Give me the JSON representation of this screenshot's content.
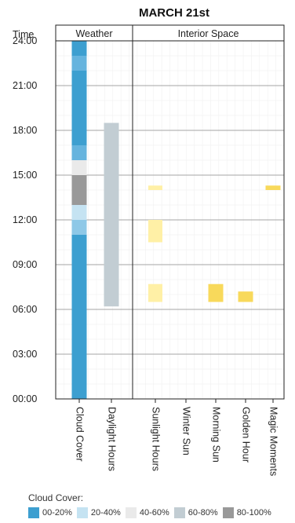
{
  "chart_data": {
    "type": "timeline",
    "title": "MARCH 21st",
    "y_axis_label": "Time",
    "y_ticks": [
      "24:00",
      "21:00",
      "18:00",
      "15:00",
      "12:00",
      "09:00",
      "06:00",
      "03:00",
      "00:00"
    ],
    "y_tick_hours": [
      24,
      21,
      18,
      15,
      12,
      9,
      6,
      3,
      0
    ],
    "ylim": [
      0,
      24
    ],
    "groups": [
      {
        "name": "Weather",
        "columns": 2
      },
      {
        "name": "Interior Space",
        "columns": 5
      }
    ],
    "columns": [
      "Cloud Cover",
      "Daylight Hours",
      "Sunlight Hours",
      "Winter Sun",
      "Morning Sun",
      "Golden Hour",
      "Magic Moments"
    ],
    "colors": {
      "cloud_00_20": "#3d9fd0",
      "cloud_20_40": "#c5e3f2",
      "cloud_40_60": "#eaeaea",
      "cloud_60_80": "#c2cdd3",
      "cloud_80_100": "#999999",
      "cloud_light_blue": "#66b4de",
      "cloud_mid_blue": "#8ec8e7",
      "daylight": "#c2cdd3",
      "sun_pale": "#fff0a6",
      "sun_strong": "#f8d95b"
    },
    "cloud_cover": [
      {
        "start": 0,
        "end": 11,
        "color": "cloud_00_20"
      },
      {
        "start": 11,
        "end": 12,
        "color": "cloud_mid_blue"
      },
      {
        "start": 12,
        "end": 13,
        "color": "cloud_20_40"
      },
      {
        "start": 13,
        "end": 14,
        "color": "cloud_80_100"
      },
      {
        "start": 14,
        "end": 15,
        "color": "cloud_80_100"
      },
      {
        "start": 15,
        "end": 16,
        "color": "cloud_40_60"
      },
      {
        "start": 16,
        "end": 17,
        "color": "cloud_light_blue"
      },
      {
        "start": 17,
        "end": 22,
        "color": "cloud_00_20"
      },
      {
        "start": 22,
        "end": 23,
        "color": "cloud_light_blue"
      },
      {
        "start": 23,
        "end": 24,
        "color": "cloud_00_20"
      }
    ],
    "bars": [
      {
        "column": "Daylight Hours",
        "start": 6.2,
        "end": 18.5,
        "color": "daylight"
      },
      {
        "column": "Sunlight Hours",
        "start": 6.5,
        "end": 7.7,
        "color": "sun_pale"
      },
      {
        "column": "Sunlight Hours",
        "start": 10.5,
        "end": 12.0,
        "color": "sun_pale"
      },
      {
        "column": "Sunlight Hours",
        "start": 14.0,
        "end": 14.3,
        "color": "sun_pale"
      },
      {
        "column": "Morning Sun",
        "start": 6.5,
        "end": 7.7,
        "color": "sun_strong"
      },
      {
        "column": "Golden Hour",
        "start": 6.5,
        "end": 7.2,
        "color": "sun_strong"
      },
      {
        "column": "Magic Moments",
        "start": 14.0,
        "end": 14.3,
        "color": "sun_strong"
      }
    ],
    "legend": {
      "title": "Cloud Cover:",
      "items": [
        {
          "label": "00-20%",
          "color": "#3d9fd0"
        },
        {
          "label": "20-40%",
          "color": "#c5e3f2"
        },
        {
          "label": "40-60%",
          "color": "#eaeaea"
        },
        {
          "label": "60-80%",
          "color": "#c2cdd3"
        },
        {
          "label": "80-100%",
          "color": "#999999"
        }
      ]
    }
  }
}
